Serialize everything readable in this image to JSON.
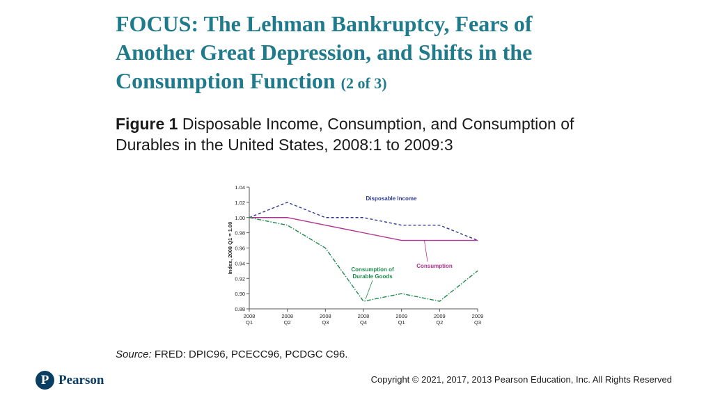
{
  "slide": {
    "title": "FOCUS: The Lehman Bankruptcy, Fears of Another Great Depression, and Shifts in the Consumption Function",
    "title_part": "(2 of 3)",
    "figure_label": "Figure 1",
    "figure_caption": "Disposable Income, Consumption, and Consumption of Durables in the United States, 2008:1 to 2009:3",
    "source_label": "Source:",
    "source_text": "FRED: DPIC96, PCECC96, PCDGC C96.",
    "logo_mark": "P",
    "logo_text": "Pearson",
    "copyright": "Copyright © 2021, 2017, 2013 Pearson Education, Inc. All Rights Reserved"
  },
  "chart_data": {
    "type": "line",
    "x": [
      [
        "2008",
        "Q1"
      ],
      [
        "2008",
        "Q2"
      ],
      [
        "2008",
        "Q3"
      ],
      [
        "2008",
        "Q4"
      ],
      [
        "2009",
        "Q1"
      ],
      [
        "2009",
        "Q2"
      ],
      [
        "2009",
        "Q3"
      ]
    ],
    "ylabel": "Index, 2008 Q1 = 1.00",
    "ylim": [
      0.88,
      1.04
    ],
    "yticks": [
      "0.88",
      "0.90",
      "0.92",
      "0.94",
      "0.96",
      "0.98",
      "1.00",
      "1.02",
      "1.04"
    ],
    "grid": false,
    "series": [
      {
        "name": "Disposable Income",
        "values": [
          1.0,
          1.02,
          1.0,
          1.0,
          0.99,
          0.99,
          0.97
        ],
        "color": "#2b3a8f",
        "style": "dashed"
      },
      {
        "name": "Consumption",
        "values": [
          1.0,
          1.0,
          0.99,
          0.98,
          0.97,
          0.97,
          0.97
        ],
        "color": "#b0318f",
        "style": "solid"
      },
      {
        "name": "Consumption of Durable Goods",
        "values": [
          1.0,
          0.99,
          0.96,
          0.89,
          0.9,
          0.89,
          0.93
        ],
        "color": "#1e8a4a",
        "style": "dashdot"
      }
    ]
  }
}
